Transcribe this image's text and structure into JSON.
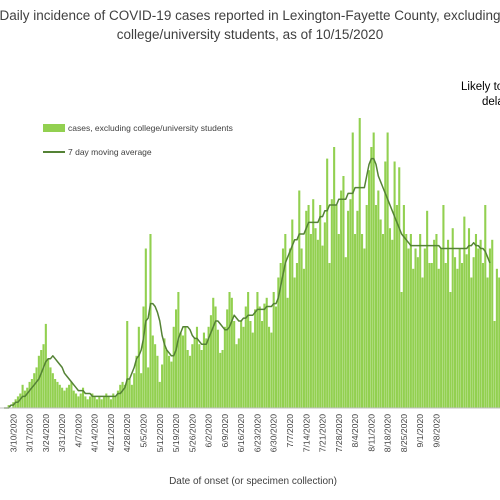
{
  "chart_data": {
    "type": "bar",
    "title_lines": [
      "Daily incidence of COVID-19 cases reported in Lexington-Fayette County, excluding",
      "college/university students, as of 10/15/2020"
    ],
    "xlabel": "Date of onset (or specimen collection)",
    "ylabel": "",
    "annotation_lines": [
      "Likely to",
      "dela"
    ],
    "legend_position": "top-left",
    "gridlines": false,
    "x_start_date": "3/6/2020",
    "tick_labels": [
      "3/10/2020",
      "3/17/2020",
      "3/24/2020",
      "3/31/2020",
      "4/7/2020",
      "4/14/2020",
      "4/21/2020",
      "4/28/2020",
      "5/5/2020",
      "5/12/2020",
      "5/19/2020",
      "5/26/2020",
      "6/2/2020",
      "6/9/2020",
      "6/16/2020",
      "6/23/2020",
      "6/30/2020",
      "7/7/2020",
      "7/14/2020",
      "7/21/2020",
      "7/28/2020",
      "8/4/2020",
      "8/11/2020",
      "8/18/2020",
      "8/25/2020",
      "9/1/2020",
      "9/8/2020"
    ],
    "ylim": [
      0,
      100
    ],
    "series": [
      {
        "name": "cases, excluding college/university students",
        "kind": "bar",
        "color": "#92d050",
        "values": [
          0,
          0,
          1,
          0,
          2,
          3,
          4,
          5,
          8,
          6,
          7,
          9,
          10,
          12,
          14,
          18,
          20,
          22,
          29,
          17,
          14,
          12,
          10,
          9,
          8,
          7,
          6,
          7,
          8,
          9,
          6,
          5,
          4,
          5,
          7,
          4,
          3,
          4,
          5,
          4,
          3,
          4,
          3,
          4,
          5,
          4,
          3,
          5,
          4,
          6,
          8,
          9,
          8,
          30,
          10,
          8,
          12,
          18,
          28,
          12,
          35,
          55,
          14,
          60,
          25,
          22,
          18,
          9,
          15,
          24,
          20,
          18,
          16,
          28,
          34,
          40,
          26,
          25,
          28,
          20,
          18,
          22,
          24,
          28,
          22,
          20,
          26,
          24,
          28,
          32,
          38,
          35,
          27,
          19,
          20,
          28,
          34,
          40,
          38,
          30,
          22,
          24,
          30,
          28,
          35,
          40,
          30,
          26,
          34,
          40,
          35,
          30,
          36,
          38,
          28,
          26,
          40,
          35,
          45,
          50,
          55,
          60,
          38,
          55,
          65,
          45,
          50,
          75,
          55,
          48,
          68,
          70,
          60,
          72,
          62,
          58,
          70,
          56,
          64,
          86,
          50,
          72,
          90,
          70,
          60,
          75,
          80,
          52,
          68,
          72,
          95,
          60,
          68,
          100,
          60,
          55,
          70,
          82,
          90,
          95,
          70,
          75,
          65,
          60,
          85,
          95,
          62,
          58,
          85,
          70,
          83,
          40,
          70,
          60,
          55,
          60,
          48,
          55,
          52,
          60,
          45,
          55,
          68,
          50,
          50,
          58,
          60,
          48,
          55,
          70,
          50,
          58,
          40,
          62,
          52,
          48,
          55,
          50,
          66,
          53,
          62,
          45,
          52,
          60,
          55,
          58,
          50,
          70,
          45,
          55,
          58,
          30,
          48,
          45
        ]
      },
      {
        "name": "7 day moving average",
        "kind": "line",
        "color": "#548235",
        "values": [
          0,
          0,
          0,
          1,
          1,
          2,
          2,
          3,
          4,
          4,
          5,
          6,
          7,
          8,
          9,
          10,
          12,
          14,
          16,
          17,
          17,
          18,
          17,
          16,
          15,
          14,
          12,
          11,
          10,
          9,
          8,
          7,
          6,
          6,
          6,
          5,
          5,
          5,
          4,
          4,
          4,
          4,
          4,
          4,
          4,
          4,
          4,
          4,
          4,
          5,
          5,
          6,
          7,
          10,
          10,
          12,
          14,
          17,
          18,
          20,
          24,
          30,
          31,
          36,
          36,
          35,
          33,
          30,
          25,
          22,
          20,
          19,
          18,
          18,
          20,
          24,
          26,
          28,
          28,
          28,
          27,
          25,
          24,
          24,
          23,
          22,
          22,
          22,
          24,
          26,
          28,
          30,
          30,
          29,
          28,
          27,
          27,
          28,
          30,
          32,
          31,
          30,
          30,
          31,
          31,
          32,
          32,
          32,
          33,
          34,
          34,
          34,
          34,
          35,
          35,
          35,
          36,
          36,
          38,
          42,
          46,
          50,
          52,
          54,
          56,
          58,
          58,
          60,
          60,
          60,
          62,
          64,
          64,
          64,
          64,
          64,
          66,
          66,
          68,
          68,
          70,
          70,
          70,
          70,
          72,
          72,
          72,
          72,
          74,
          74,
          74,
          76,
          76,
          76,
          76,
          76,
          80,
          84,
          86,
          86,
          84,
          80,
          78,
          76,
          74,
          72,
          70,
          68,
          66,
          64,
          62,
          60,
          59,
          58,
          57,
          56,
          56,
          56,
          56,
          56,
          56,
          56,
          56,
          56,
          56,
          56,
          56,
          56,
          55,
          55,
          55,
          55,
          55,
          55,
          55,
          55,
          55,
          55,
          55,
          55,
          56,
          56,
          57,
          56,
          56,
          55,
          55,
          54,
          52,
          50
        ]
      }
    ]
  }
}
